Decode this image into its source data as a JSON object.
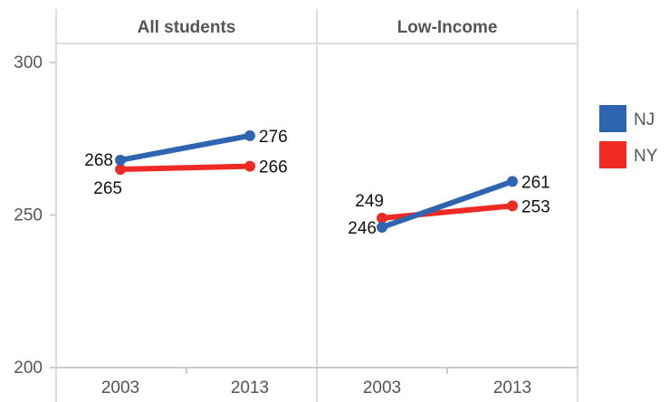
{
  "chart_data": {
    "type": "line",
    "facets": [
      {
        "title": "All students",
        "x": [
          "2003",
          "2013"
        ],
        "series": [
          {
            "name": "NJ",
            "values": [
              268,
              276
            ]
          },
          {
            "name": "NY",
            "values": [
              265,
              266
            ]
          }
        ]
      },
      {
        "title": "Low-Income",
        "x": [
          "2003",
          "2013"
        ],
        "series": [
          {
            "name": "NJ",
            "values": [
              246,
              261
            ]
          },
          {
            "name": "NY",
            "values": [
              249,
              253
            ]
          }
        ]
      }
    ],
    "yticks": [
      "300",
      "250",
      "200"
    ],
    "ylim": [
      200,
      306
    ],
    "legend": [
      {
        "name": "NJ",
        "color": "#2e64b0"
      },
      {
        "name": "NY",
        "color": "#ef2a24"
      }
    ],
    "legend_position": "right",
    "grid": false
  }
}
